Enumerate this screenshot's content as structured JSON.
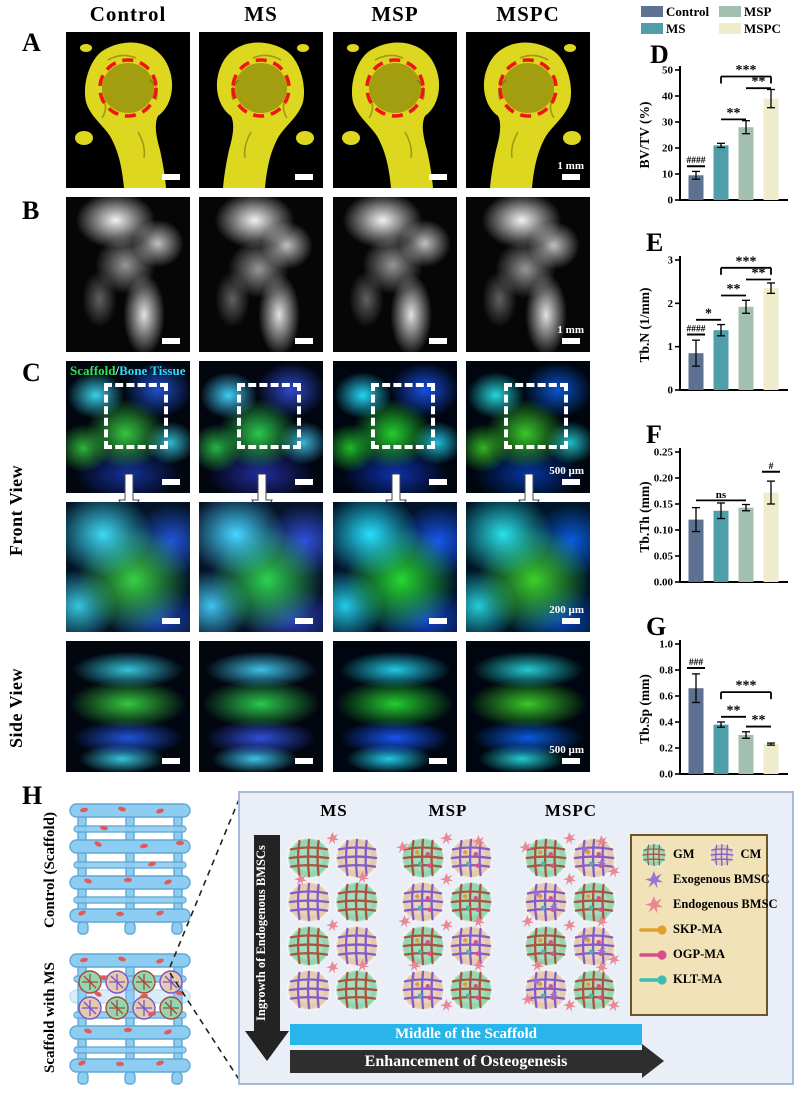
{
  "figure": {
    "column_headers": [
      "Control",
      "MS",
      "MSP",
      "MSPC"
    ],
    "panel_labels": {
      "a": "A",
      "b": "B",
      "c": "C",
      "d": "D",
      "e": "E",
      "f": "F",
      "g": "G",
      "h": "H"
    },
    "scale_bars": {
      "a": "1 mm",
      "b": "1 mm",
      "c_row1": "500 µm",
      "c_row2": "200 µm",
      "c_row3": "500 µm"
    },
    "c_overlay": {
      "scaffold": "Scaffold",
      "slash": "/",
      "bone": "Bone Tissue"
    },
    "view_labels": {
      "front": "Front View",
      "side": "Side View"
    }
  },
  "legend": {
    "items": [
      {
        "label": "Control",
        "color": "#5d7191"
      },
      {
        "label": "MS",
        "color": "#4f9fab"
      },
      {
        "label": "MSP",
        "color": "#a3bfb0"
      },
      {
        "label": "MSPC",
        "color": "#eeeccb"
      }
    ]
  },
  "chart_data": [
    {
      "type": "bar",
      "panel": "D",
      "categories": [
        "Control",
        "MS",
        "MSP",
        "MSPC"
      ],
      "values": [
        9.5,
        21,
        28,
        39
      ],
      "errors": [
        1.5,
        0.8,
        2.5,
        3.5
      ],
      "title": "",
      "xlabel": "",
      "ylabel": "BV/TV (%)",
      "ylim": [
        0,
        50
      ],
      "yticks": [
        0,
        10,
        20,
        30,
        40,
        50
      ],
      "ytick_labels": [
        "0",
        "10",
        "20",
        "30",
        "40",
        "50"
      ],
      "annotations": [
        {
          "kind": "hash",
          "bar": 0,
          "text": "####",
          "y": 13
        },
        {
          "kind": "line",
          "from": 1,
          "to": 2,
          "text": "**",
          "y": 31
        },
        {
          "kind": "line",
          "from": 2,
          "to": 3,
          "text": "**",
          "y": 43
        },
        {
          "kind": "bracket",
          "from": 1,
          "to": 3,
          "text": "***",
          "y": 47.5
        }
      ]
    },
    {
      "type": "bar",
      "panel": "E",
      "categories": [
        "Control",
        "MS",
        "MSP",
        "MSPC"
      ],
      "values": [
        0.85,
        1.38,
        1.92,
        2.35
      ],
      "errors": [
        0.3,
        0.13,
        0.15,
        0.12
      ],
      "title": "",
      "xlabel": "",
      "ylabel": "Tb.N (1/mm)",
      "ylim": [
        0,
        3
      ],
      "yticks": [
        0,
        1,
        2,
        3
      ],
      "ytick_labels": [
        "0",
        "1",
        "2",
        "3"
      ],
      "annotations": [
        {
          "kind": "hash",
          "bar": 0,
          "text": "####",
          "y": 1.28
        },
        {
          "kind": "line",
          "from": 0,
          "to": 1,
          "text": "*",
          "y": 1.62
        },
        {
          "kind": "line",
          "from": 1,
          "to": 2,
          "text": "**",
          "y": 2.18
        },
        {
          "kind": "line",
          "from": 2,
          "to": 3,
          "text": "**",
          "y": 2.55
        },
        {
          "kind": "bracket",
          "from": 1,
          "to": 3,
          "text": "***",
          "y": 2.82
        }
      ]
    },
    {
      "type": "bar",
      "panel": "F",
      "categories": [
        "Control",
        "MS",
        "MSP",
        "MSPC"
      ],
      "values": [
        0.12,
        0.137,
        0.143,
        0.172
      ],
      "errors": [
        0.023,
        0.015,
        0.006,
        0.022
      ],
      "title": "",
      "xlabel": "",
      "ylabel": "Tb.Th (mm)",
      "ylim": [
        0,
        0.25
      ],
      "yticks": [
        0,
        0.05,
        0.1,
        0.15,
        0.2,
        0.25
      ],
      "ytick_labels": [
        "0.00",
        "0.05",
        "0.10",
        "0.15",
        "0.20",
        "0.25"
      ],
      "annotations": [
        {
          "kind": "line",
          "from": 0,
          "to": 2,
          "text": "ns",
          "y": 0.157
        },
        {
          "kind": "hash",
          "bar": 3,
          "text": "#",
          "y": 0.212
        }
      ]
    },
    {
      "type": "bar",
      "panel": "G",
      "categories": [
        "Control",
        "MS",
        "MSP",
        "MSPC"
      ],
      "values": [
        0.66,
        0.38,
        0.3,
        0.23
      ],
      "errors": [
        0.11,
        0.02,
        0.025,
        0.008
      ],
      "title": "",
      "xlabel": "",
      "ylabel": "Tb.Sp (mm)",
      "ylim": [
        0,
        1
      ],
      "yticks": [
        0,
        0.2,
        0.4,
        0.6,
        0.8,
        1
      ],
      "ytick_labels": [
        "0.0",
        "0.2",
        "0.4",
        "0.6",
        "0.8",
        "1.0"
      ],
      "annotations": [
        {
          "kind": "hash",
          "bar": 0,
          "text": "###",
          "y": 0.815
        },
        {
          "kind": "line",
          "from": 1,
          "to": 2,
          "text": "**",
          "y": 0.44
        },
        {
          "kind": "line",
          "from": 2,
          "to": 3,
          "text": "**",
          "y": 0.365
        },
        {
          "kind": "bracket",
          "from": 1,
          "to": 3,
          "text": "***",
          "y": 0.63
        }
      ]
    }
  ],
  "h_panel": {
    "left": {
      "top_label": "Control (Scaffold)",
      "bottom_label": "Scaffold with MS"
    },
    "box": {
      "columns": [
        "MS",
        "MSP",
        "MSPC"
      ],
      "y_axis_label": "Ingrowth of Endogenous BMSCs",
      "banner_middle": "Middle of the Scaffold",
      "banner_bottom": "Enhancement of Osteogenesis",
      "legend": {
        "items": [
          {
            "icon": "gm-circle",
            "label": "GM"
          },
          {
            "icon": "cm-circle",
            "label": "CM"
          },
          {
            "icon": "exogenous-bmsc-star",
            "label": "Exogenous BMSC"
          },
          {
            "icon": "endogenous-bmsc-star",
            "label": "Endogenous BMSC"
          },
          {
            "icon": "skp-ma-pin",
            "label": "SKP-MA"
          },
          {
            "icon": "ogp-ma-pin",
            "label": "OGP-MA"
          },
          {
            "icon": "klt-ma-pin",
            "label": "KLT-MA"
          }
        ]
      }
    },
    "colors": {
      "gm": "#93d6b2",
      "gm_grid": "#a84a36",
      "cm": "#e4cbae",
      "cm_grid": "#7b52c8",
      "exogenous_bmsc": "#9a6fd0",
      "endogenous_bmsc": "#e8838e",
      "skp_ma": "#e0a02f",
      "ogp_ma": "#d84f8e",
      "klt_ma": "#3fbdb0",
      "box_bg": "#e9eef7",
      "legend_bg": "#f1e2b8",
      "banner_middle_bg": "#29b4ea",
      "banner_bottom_bg": "#2e2e2e",
      "scaffold_blue": "#8ecdf2",
      "cell_red": "#e05a5a"
    }
  },
  "panel_a": {
    "circle_color": "#ee1515",
    "bone_color": "#ddd81f"
  }
}
